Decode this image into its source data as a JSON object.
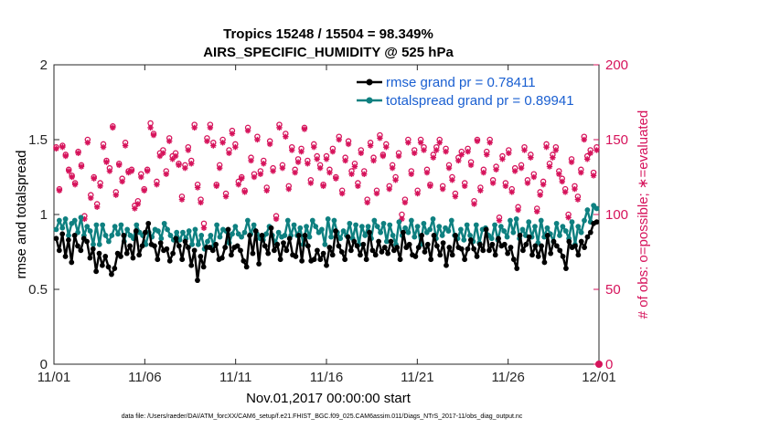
{
  "chart_data": {
    "type": "line",
    "title_line1": "Tropics 15248 / 15504 = 98.349%",
    "title_line2": "AIRS_SPECIFIC_HUMIDITY @ 525 hPa",
    "xlabel": "Nov.01,2017 00:00:00 start",
    "ylabel_left": "rmse and totalspread",
    "ylabel_right": "# of obs: o=possible; ∗=evaluated",
    "left_ylim": [
      0,
      2
    ],
    "right_ylim": [
      0,
      200
    ],
    "left_yticks": [
      "0",
      "0.5",
      "1",
      "1.5",
      "2"
    ],
    "right_yticks": [
      "0",
      "50",
      "100",
      "150",
      "200"
    ],
    "x_ticks": [
      "11/01",
      "11/06",
      "11/11",
      "11/16",
      "11/21",
      "11/26",
      "12/01"
    ],
    "xlim_days": [
      0,
      30
    ],
    "footer": "data file: /Users/raeder/DAI/ATM_forcXX/CAM6_setup/f.e21.FHIST_BGC.f09_025.CAM6assim.011/Diags_NTrS_2017-11/obs_diag_output.nc",
    "colors": {
      "rmse": "#000000",
      "spread": "#0e8080",
      "obs": "#d6135b",
      "legend_text": "#1a5fd1"
    },
    "series": [
      {
        "name": "rmse grand pr = 0.78411",
        "key": "rmse",
        "values": [
          0.84,
          0.76,
          0.87,
          0.72,
          0.83,
          0.68,
          0.86,
          0.79,
          0.76,
          0.84,
          0.82,
          0.71,
          0.77,
          0.62,
          0.74,
          0.66,
          0.72,
          0.65,
          0.6,
          0.64,
          0.74,
          0.72,
          0.86,
          0.74,
          0.79,
          0.71,
          0.89,
          0.73,
          0.79,
          0.88,
          0.94,
          0.8,
          0.79,
          0.7,
          0.81,
          0.76,
          0.77,
          0.69,
          0.74,
          0.84,
          0.79,
          0.7,
          0.82,
          0.78,
          0.66,
          0.76,
          0.56,
          0.72,
          0.65,
          0.78,
          0.78,
          0.76,
          0.8,
          0.7,
          0.71,
          0.78,
          0.9,
          0.73,
          0.78,
          0.79,
          0.76,
          0.69,
          0.65,
          0.86,
          0.74,
          0.89,
          0.67,
          0.86,
          0.79,
          0.74,
          0.91,
          0.76,
          0.8,
          0.7,
          0.81,
          0.76,
          0.84,
          0.73,
          0.72,
          0.86,
          0.69,
          0.86,
          0.79,
          0.69,
          0.7,
          0.76,
          0.7,
          0.74,
          0.66,
          0.78,
          0.73,
          0.89,
          0.79,
          0.75,
          0.7,
          0.85,
          0.76,
          0.82,
          0.79,
          0.73,
          0.8,
          0.7,
          0.88,
          0.76,
          0.73,
          0.82,
          0.75,
          0.78,
          0.74,
          0.82,
          0.76,
          0.78,
          0.7,
          0.88,
          0.78,
          0.8,
          0.73,
          0.72,
          0.78,
          0.86,
          0.75,
          0.8,
          0.7,
          0.86,
          0.79,
          0.73,
          0.81,
          0.66,
          0.78,
          0.73,
          0.86,
          0.78,
          0.77,
          0.7,
          0.77,
          0.83,
          0.77,
          0.72,
          0.8,
          0.76,
          0.9,
          0.76,
          0.8,
          0.73,
          0.84,
          0.79,
          0.8,
          0.74,
          0.78,
          0.7,
          0.64,
          0.86,
          0.76,
          0.8,
          0.85,
          0.73,
          0.79,
          0.72,
          0.79,
          0.68,
          0.86,
          0.74,
          0.82,
          0.79,
          0.76,
          0.72,
          0.64,
          0.82,
          0.78,
          0.79,
          0.73,
          0.82,
          0.78,
          0.85,
          0.88,
          0.94,
          0.95
        ]
      },
      {
        "name": "totalspread grand pr = 0.89941",
        "key": "spread",
        "values": [
          0.9,
          0.96,
          0.91,
          0.97,
          0.86,
          0.94,
          0.96,
          0.88,
          0.98,
          0.86,
          0.92,
          0.89,
          0.8,
          0.93,
          0.8,
          0.93,
          0.86,
          0.82,
          0.86,
          0.92,
          0.87,
          0.93,
          0.82,
          0.9,
          0.86,
          0.84,
          0.93,
          0.88,
          0.86,
          0.8,
          0.88,
          0.85,
          0.9,
          0.89,
          0.84,
          0.94,
          0.9,
          0.86,
          0.83,
          0.88,
          0.83,
          0.88,
          0.84,
          0.89,
          0.8,
          0.9,
          0.8,
          0.86,
          0.77,
          0.82,
          0.86,
          0.79,
          0.93,
          0.85,
          0.9,
          0.89,
          0.81,
          0.87,
          0.92,
          0.87,
          0.85,
          0.88,
          0.96,
          0.87,
          0.93,
          0.87,
          0.84,
          0.83,
          0.87,
          0.92,
          0.86,
          0.81,
          0.88,
          0.85,
          0.86,
          0.96,
          0.86,
          0.93,
          0.86,
          0.91,
          0.8,
          0.92,
          0.85,
          0.96,
          0.92,
          0.88,
          0.9,
          0.8,
          0.97,
          0.85,
          0.96,
          0.88,
          0.84,
          0.89,
          0.86,
          0.94,
          0.84,
          0.93,
          0.8,
          0.92,
          0.86,
          0.92,
          0.84,
          0.96,
          0.92,
          0.88,
          0.94,
          0.82,
          0.93,
          0.86,
          0.8,
          0.95,
          0.86,
          0.91,
          0.88,
          0.96,
          0.85,
          0.92,
          0.8,
          0.94,
          0.88,
          0.9,
          0.97,
          0.84,
          0.92,
          0.86,
          0.91,
          0.89,
          0.96,
          0.86,
          0.84,
          0.9,
          0.83,
          0.93,
          0.86,
          0.82,
          0.93,
          0.81,
          0.9,
          0.91,
          0.86,
          0.84,
          0.93,
          0.83,
          0.92,
          0.89,
          0.85,
          0.96,
          0.88,
          0.97,
          0.84,
          0.9,
          0.86,
          0.95,
          0.85,
          0.92,
          0.81,
          0.96,
          0.85,
          0.91,
          0.87,
          0.82,
          0.94,
          0.86,
          0.92,
          0.89,
          0.84,
          0.95,
          0.8,
          0.92,
          0.88,
          0.96,
          1.03,
          0.95,
          1.06,
          1.04
        ]
      }
    ],
    "obs_possible": [
      145,
      117,
      146,
      140,
      130,
      126,
      121,
      142,
      133,
      99,
      150,
      113,
      125,
      107,
      121,
      147,
      136,
      131,
      159,
      115,
      134,
      124,
      148,
      129,
      130,
      106,
      109,
      127,
      117,
      130,
      161,
      154,
      122,
      141,
      143,
      129,
      151,
      139,
      141,
      134,
      112,
      133,
      145,
      136,
      160,
      120,
      110,
      94,
      151,
      160,
      148,
      120,
      133,
      150,
      114,
      143,
      156,
      147,
      122,
      125,
      116,
      158,
      138,
      127,
      152,
      129,
      136,
      118,
      149,
      131,
      99,
      160,
      133,
      154,
      119,
      145,
      130,
      137,
      144,
      158,
      136,
      123,
      147,
      139,
      133,
      120,
      139,
      130,
      144,
      125,
      152,
      116,
      138,
      149,
      129,
      134,
      121,
      143,
      129,
      110,
      148,
      138,
      116,
      153,
      140,
      147,
      119,
      133,
      125,
      141,
      100,
      110,
      150,
      129,
      143,
      116,
      150,
      145,
      130,
      120,
      140,
      145,
      150,
      119,
      144,
      133,
      125,
      114,
      138,
      142,
      121,
      144,
      135,
      109,
      150,
      118,
      130,
      142,
      150,
      123,
      132,
      98,
      139,
      121,
      143,
      117,
      131,
      105,
      133,
      145,
      123,
      140,
      127,
      104,
      115,
      122,
      147,
      134,
      140,
      145,
      129,
      124,
      117,
      100,
      137,
      119,
      112,
      130,
      152,
      139,
      143,
      128,
      145
    ],
    "obs_evaluated": [
      144,
      116,
      145,
      139,
      129,
      125,
      120,
      141,
      132,
      97,
      148,
      111,
      124,
      105,
      119,
      145,
      135,
      129,
      158,
      113,
      133,
      122,
      146,
      128,
      129,
      104,
      107,
      125,
      116,
      129,
      158,
      153,
      120,
      139,
      141,
      127,
      149,
      137,
      139,
      133,
      110,
      131,
      143,
      134,
      158,
      118,
      108,
      91,
      149,
      158,
      146,
      119,
      131,
      148,
      112,
      141,
      154,
      145,
      120,
      124,
      115,
      156,
      136,
      125,
      150,
      127,
      134,
      116,
      147,
      129,
      97,
      158,
      131,
      152,
      117,
      143,
      128,
      135,
      142,
      157,
      134,
      121,
      145,
      137,
      131,
      119,
      137,
      128,
      142,
      124,
      150,
      114,
      136,
      147,
      127,
      132,
      119,
      141,
      127,
      108,
      146,
      136,
      114,
      151,
      139,
      145,
      117,
      131,
      123,
      139,
      97,
      108,
      148,
      127,
      141,
      114,
      148,
      143,
      128,
      119,
      138,
      143,
      148,
      117,
      142,
      131,
      123,
      112,
      136,
      140,
      119,
      142,
      133,
      107,
      149,
      116,
      128,
      140,
      148,
      121,
      130,
      96,
      137,
      119,
      141,
      115,
      129,
      103,
      131,
      143,
      121,
      138,
      125,
      102,
      113,
      120,
      145,
      132,
      138,
      143,
      127,
      122,
      115,
      98,
      135,
      117,
      110,
      128,
      150,
      137,
      141,
      126,
      143
    ],
    "end_marker_value": 0
  }
}
